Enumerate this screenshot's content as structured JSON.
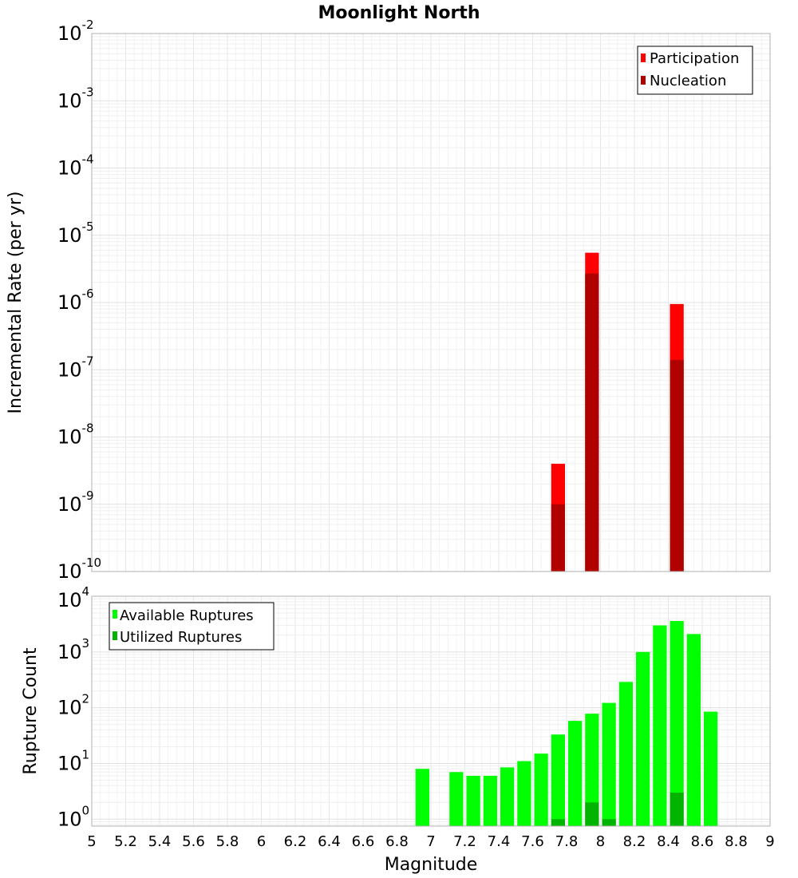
{
  "chart_data": [
    {
      "type": "bar",
      "title": "Moonlight North",
      "xlabel": "Magnitude",
      "ylabel": "Incremental Rate (per yr)",
      "yscale": "log",
      "xlim": [
        5,
        9
      ],
      "ylim": [
        1e-10,
        0.01
      ],
      "y_ticks": [
        {
          "base": "10",
          "exp": "-10"
        },
        {
          "base": "10",
          "exp": "-9"
        },
        {
          "base": "10",
          "exp": "-8"
        },
        {
          "base": "10",
          "exp": "-7"
        },
        {
          "base": "10",
          "exp": "-6"
        },
        {
          "base": "10",
          "exp": "-5"
        },
        {
          "base": "10",
          "exp": "-4"
        },
        {
          "base": "10",
          "exp": "-3"
        },
        {
          "base": "10",
          "exp": "-2"
        }
      ],
      "legend_position": "top-right",
      "series": [
        {
          "name": "Participation",
          "color": "#ff0000",
          "x": [
            7.75,
            7.95,
            8.45
          ],
          "values": [
            4e-09,
            5.5e-06,
            9.5e-07
          ]
        },
        {
          "name": "Nucleation",
          "color": "#b00000",
          "x": [
            7.75,
            7.95,
            8.45
          ],
          "values": [
            1e-09,
            2.7e-06,
            1.4e-07
          ]
        }
      ]
    },
    {
      "type": "bar",
      "xlabel": "Magnitude",
      "ylabel": "Rupture Count",
      "yscale": "log",
      "xlim": [
        5,
        9
      ],
      "ylim": [
        0.75,
        10000
      ],
      "x_ticks": [
        "5",
        "5.2",
        "5.4",
        "5.6",
        "5.8",
        "6",
        "6.2",
        "6.4",
        "6.6",
        "6.8",
        "7",
        "7.2",
        "7.4",
        "7.6",
        "7.8",
        "8",
        "8.2",
        "8.4",
        "8.6",
        "8.8",
        "9"
      ],
      "y_ticks": [
        {
          "base": "10",
          "exp": "0"
        },
        {
          "base": "10",
          "exp": "1"
        },
        {
          "base": "10",
          "exp": "2"
        },
        {
          "base": "10",
          "exp": "3"
        },
        {
          "base": "10",
          "exp": "4"
        }
      ],
      "legend_position": "top-left",
      "series": [
        {
          "name": "Available Ruptures",
          "color": "#00ff00",
          "x": [
            6.95,
            7.15,
            7.25,
            7.35,
            7.45,
            7.55,
            7.65,
            7.75,
            7.85,
            7.95,
            8.05,
            8.15,
            8.25,
            8.35,
            8.45,
            8.55,
            8.65
          ],
          "values": [
            8,
            7,
            6,
            6,
            8.5,
            11,
            15,
            33,
            58,
            78,
            122,
            290,
            1000,
            3000,
            3600,
            2100,
            85
          ]
        },
        {
          "name": "Utilized Ruptures",
          "color": "#00b400",
          "x": [
            7.75,
            7.95,
            8.05,
            8.45
          ],
          "values": [
            1,
            2,
            1,
            3
          ]
        }
      ]
    }
  ]
}
